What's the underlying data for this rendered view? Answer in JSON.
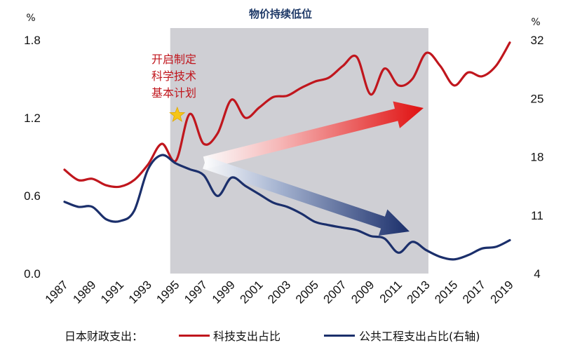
{
  "chart_data": {
    "type": "line",
    "title": "物价持续低位",
    "x": [
      1987,
      1988,
      1989,
      1990,
      1991,
      1992,
      1993,
      1994,
      1995,
      1996,
      1997,
      1998,
      1999,
      2000,
      2001,
      2002,
      2003,
      2004,
      2005,
      2006,
      2007,
      2008,
      2009,
      2010,
      2011,
      2012,
      2013,
      2014,
      2015,
      2016,
      2017,
      2018,
      2019
    ],
    "x_tick_labels": [
      "1987",
      "1989",
      "1991",
      "1993",
      "1995",
      "1997",
      "1999",
      "2001",
      "2003",
      "2005",
      "2007",
      "2009",
      "2011",
      "2013",
      "2015",
      "2017",
      "2019"
    ],
    "y_left": {
      "unit": "%",
      "ticks": [
        "0.0",
        "0.6",
        "1.2",
        "1.8"
      ],
      "ylim": [
        0,
        1.8
      ]
    },
    "y_right": {
      "unit": "%",
      "ticks": [
        "4",
        "11",
        "18",
        "25",
        "32"
      ],
      "ylim": [
        4,
        32
      ]
    },
    "series": [
      {
        "name": "科技支出占比",
        "axis": "left",
        "color": "#c0161d",
        "values": [
          0.8,
          0.72,
          0.73,
          0.68,
          0.67,
          0.72,
          0.84,
          1.0,
          0.87,
          1.23,
          1.0,
          1.08,
          1.34,
          1.2,
          1.28,
          1.36,
          1.37,
          1.43,
          1.48,
          1.51,
          1.6,
          1.67,
          1.38,
          1.58,
          1.45,
          1.5,
          1.7,
          1.6,
          1.45,
          1.55,
          1.52,
          1.6,
          1.78
        ]
      },
      {
        "name": "公共工程支出占比(右轴)",
        "axis": "right",
        "color": "#1b2f6b",
        "values": [
          12.6,
          12.0,
          12.0,
          10.5,
          10.3,
          11.5,
          16.5,
          18.2,
          17.2,
          16.5,
          15.8,
          13.3,
          15.5,
          14.5,
          13.5,
          12.5,
          12.0,
          11.2,
          10.2,
          9.8,
          9.5,
          9.2,
          8.5,
          8.2,
          6.5,
          7.8,
          6.8,
          6.0,
          5.7,
          6.2,
          7.0,
          7.2,
          8.0
        ]
      }
    ],
    "shaded_region": {
      "x_start": 1995,
      "x_end": 2013,
      "color": "#cfcfd4"
    },
    "annotation": {
      "lines": [
        "开启制定",
        "科学技术",
        "基本计划"
      ],
      "x": 1995,
      "marker": "star"
    },
    "arrows": [
      {
        "direction": "up",
        "color": "#e01b1b"
      },
      {
        "direction": "down",
        "color": "#1b2f6b"
      }
    ],
    "legend": {
      "prefix": "日本财政支出：",
      "items": [
        "科技支出占比",
        "公共工程支出占比(右轴)"
      ]
    },
    "grid": false
  }
}
